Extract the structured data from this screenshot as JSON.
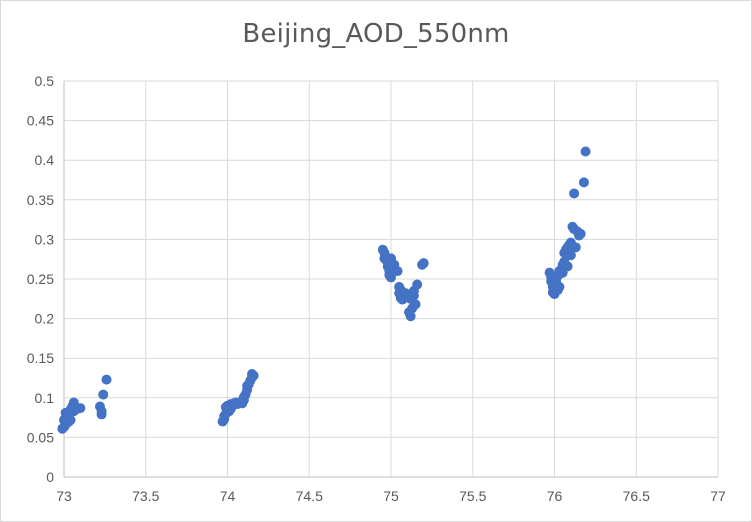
{
  "chart_data": {
    "type": "scatter",
    "title": "Beijing_AOD_550nm",
    "xlabel": "",
    "ylabel": "",
    "xlim": [
      73,
      77
    ],
    "ylim": [
      0,
      0.5
    ],
    "x_ticks": [
      "73",
      "73.5",
      "74",
      "74.5",
      "75",
      "75.5",
      "76",
      "76.5",
      "77"
    ],
    "y_ticks": [
      "0",
      "0.05",
      "0.1",
      "0.15",
      "0.2",
      "0.25",
      "0.3",
      "0.35",
      "0.4",
      "0.45",
      "0.5"
    ],
    "grid": true,
    "legend": "none",
    "marker_color": "#4472c4",
    "points": [
      [
        72.99,
        0.061
      ],
      [
        73.0,
        0.063
      ],
      [
        73.01,
        0.066
      ],
      [
        73.0,
        0.072
      ],
      [
        73.02,
        0.078
      ],
      [
        73.01,
        0.081
      ],
      [
        73.03,
        0.07
      ],
      [
        73.04,
        0.072
      ],
      [
        73.04,
        0.085
      ],
      [
        73.05,
        0.089
      ],
      [
        73.06,
        0.094
      ],
      [
        73.06,
        0.083
      ],
      [
        73.07,
        0.087
      ],
      [
        73.08,
        0.086
      ],
      [
        73.1,
        0.087
      ],
      [
        73.22,
        0.089
      ],
      [
        73.23,
        0.083
      ],
      [
        73.23,
        0.079
      ],
      [
        73.24,
        0.104
      ],
      [
        73.26,
        0.123
      ],
      [
        73.97,
        0.07
      ],
      [
        73.98,
        0.073
      ],
      [
        73.98,
        0.077
      ],
      [
        73.99,
        0.08
      ],
      [
        73.99,
        0.088
      ],
      [
        74.0,
        0.09
      ],
      [
        74.01,
        0.083
      ],
      [
        74.02,
        0.086
      ],
      [
        74.02,
        0.092
      ],
      [
        74.03,
        0.09
      ],
      [
        74.04,
        0.093
      ],
      [
        74.05,
        0.094
      ],
      [
        74.06,
        0.092
      ],
      [
        74.07,
        0.094
      ],
      [
        74.08,
        0.095
      ],
      [
        74.09,
        0.093
      ],
      [
        74.1,
        0.097
      ],
      [
        74.1,
        0.101
      ],
      [
        74.11,
        0.104
      ],
      [
        74.12,
        0.11
      ],
      [
        74.12,
        0.115
      ],
      [
        74.13,
        0.117
      ],
      [
        74.14,
        0.122
      ],
      [
        74.15,
        0.126
      ],
      [
        74.15,
        0.13
      ],
      [
        74.16,
        0.128
      ],
      [
        74.95,
        0.287
      ],
      [
        74.96,
        0.283
      ],
      [
        74.96,
        0.276
      ],
      [
        74.97,
        0.274
      ],
      [
        74.98,
        0.272
      ],
      [
        74.98,
        0.266
      ],
      [
        74.99,
        0.26
      ],
      [
        74.99,
        0.255
      ],
      [
        75.0,
        0.252
      ],
      [
        75.0,
        0.276
      ],
      [
        75.01,
        0.264
      ],
      [
        75.02,
        0.268
      ],
      [
        75.03,
        0.261
      ],
      [
        75.04,
        0.26
      ],
      [
        75.05,
        0.24
      ],
      [
        75.05,
        0.232
      ],
      [
        75.06,
        0.236
      ],
      [
        75.06,
        0.226
      ],
      [
        75.07,
        0.224
      ],
      [
        75.08,
        0.229
      ],
      [
        75.09,
        0.232
      ],
      [
        75.1,
        0.229
      ],
      [
        75.11,
        0.208
      ],
      [
        75.12,
        0.203
      ],
      [
        75.12,
        0.225
      ],
      [
        75.13,
        0.213
      ],
      [
        75.14,
        0.229
      ],
      [
        75.14,
        0.235
      ],
      [
        75.15,
        0.218
      ],
      [
        75.16,
        0.243
      ],
      [
        75.19,
        0.268
      ],
      [
        75.2,
        0.27
      ],
      [
        75.97,
        0.258
      ],
      [
        75.98,
        0.252
      ],
      [
        75.98,
        0.247
      ],
      [
        75.99,
        0.244
      ],
      [
        75.99,
        0.24
      ],
      [
        75.99,
        0.233
      ],
      [
        76.0,
        0.237
      ],
      [
        76.0,
        0.231
      ],
      [
        76.01,
        0.245
      ],
      [
        76.01,
        0.25
      ],
      [
        76.02,
        0.254
      ],
      [
        76.02,
        0.236
      ],
      [
        76.03,
        0.24
      ],
      [
        76.03,
        0.26
      ],
      [
        76.04,
        0.262
      ],
      [
        76.05,
        0.258
      ],
      [
        76.05,
        0.268
      ],
      [
        76.06,
        0.272
      ],
      [
        76.06,
        0.283
      ],
      [
        76.07,
        0.287
      ],
      [
        76.08,
        0.29
      ],
      [
        76.08,
        0.266
      ],
      [
        76.09,
        0.293
      ],
      [
        76.1,
        0.296
      ],
      [
        76.1,
        0.28
      ],
      [
        76.11,
        0.316
      ],
      [
        76.12,
        0.313
      ],
      [
        76.12,
        0.358
      ],
      [
        76.13,
        0.29
      ],
      [
        76.14,
        0.31
      ],
      [
        76.15,
        0.305
      ],
      [
        76.16,
        0.307
      ],
      [
        76.18,
        0.372
      ],
      [
        76.19,
        0.411
      ]
    ]
  }
}
